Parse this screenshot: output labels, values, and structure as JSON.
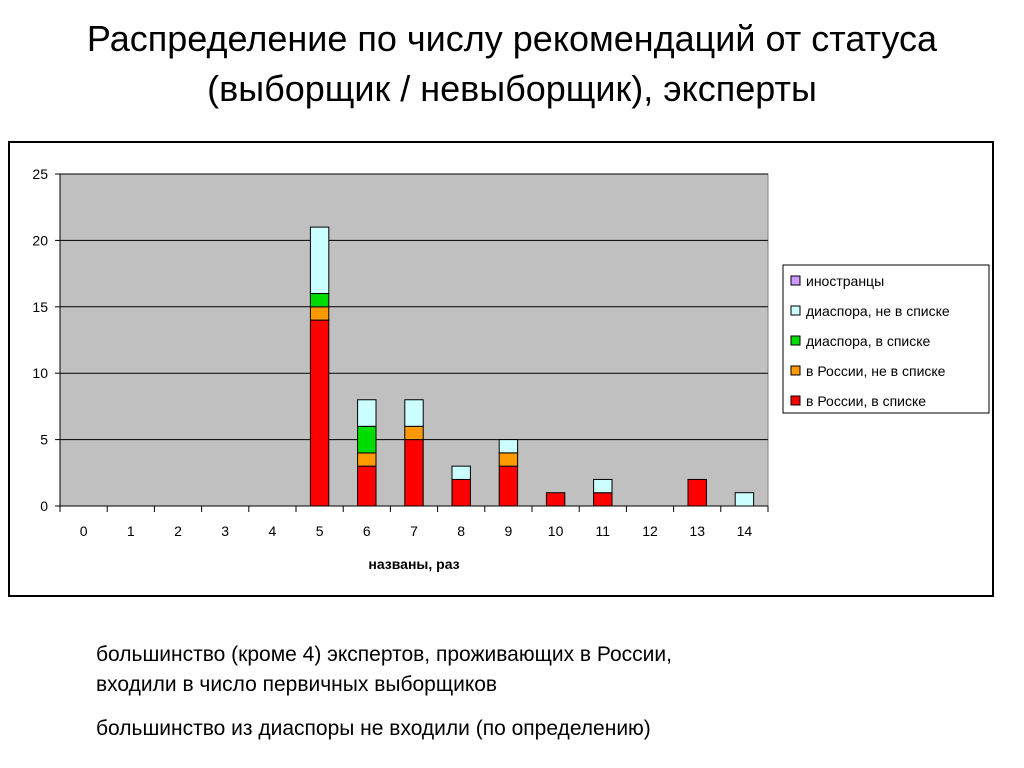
{
  "title": {
    "line1": "Распределение по числу рекомендаций от статуса",
    "line2": "(выборщик / невыборщик), эксперты"
  },
  "notes": {
    "note1": "большинство (кроме 4) экспертов, проживающих в России,\nвходили в число первичных выборщиков",
    "note2": "большинство из диаспоры не входили (по определению)"
  },
  "chart_data": {
    "type": "bar",
    "stacked": true,
    "categories": [
      "0",
      "1",
      "2",
      "3",
      "4",
      "5",
      "6",
      "7",
      "8",
      "9",
      "10",
      "11",
      "12",
      "13",
      "14"
    ],
    "series": [
      {
        "name": "в России, в списке",
        "color": "#ff0000",
        "values": [
          0,
          0,
          0,
          0,
          0,
          14,
          3,
          5,
          2,
          3,
          1,
          1,
          0,
          2,
          0
        ]
      },
      {
        "name": "в России, не в списке",
        "color": "#ff9900",
        "values": [
          0,
          0,
          0,
          0,
          0,
          1,
          1,
          1,
          0,
          1,
          0,
          0,
          0,
          0,
          0
        ]
      },
      {
        "name": "диаспора, в списке",
        "color": "#00dd00",
        "values": [
          0,
          0,
          0,
          0,
          0,
          1,
          2,
          0,
          0,
          0,
          0,
          0,
          0,
          0,
          0
        ]
      },
      {
        "name": "диаспора, не в списке",
        "color": "#ccffff",
        "values": [
          0,
          0,
          0,
          0,
          0,
          5,
          2,
          2,
          1,
          1,
          0,
          1,
          0,
          0,
          1
        ]
      },
      {
        "name": "иностранцы",
        "color": "#cc99ff",
        "values": [
          0,
          0,
          0,
          0,
          0,
          0,
          0,
          0,
          0,
          0,
          0,
          0,
          0,
          0,
          0
        ]
      }
    ],
    "legend_order": [
      "иностранцы",
      "диаспора, не в списке",
      "диаспора, в списке",
      "в России, не в списке",
      "в России, в списке"
    ],
    "xlabel": "названы, раз",
    "ylabel": "",
    "ylim": [
      0,
      25
    ],
    "yticks": [
      0,
      5,
      10,
      15,
      20,
      25
    ],
    "grid": true,
    "plot_background": "#c0c0c0",
    "legend_position": "right"
  }
}
